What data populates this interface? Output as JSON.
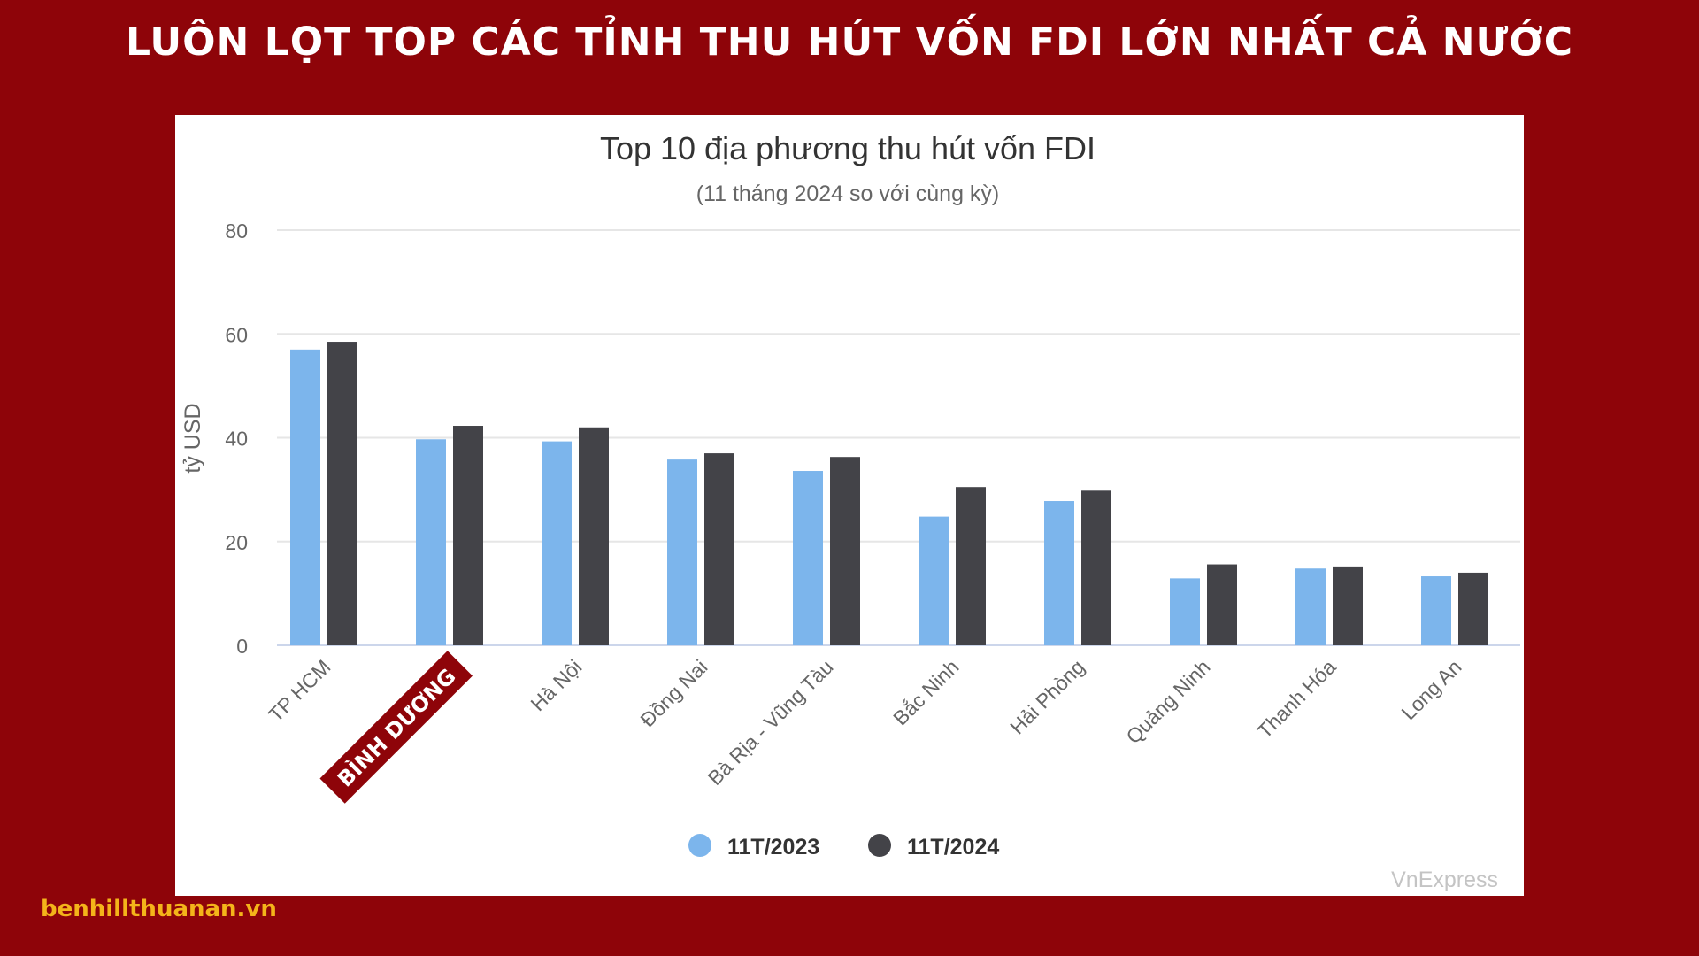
{
  "banner": {
    "title": "LUÔN LỌT TOP CÁC TỈNH THU HÚT VỐN FDI LỚN NHẤT CẢ NƯỚC"
  },
  "footer": {
    "site": "benhillthuanan.vn"
  },
  "source": {
    "label": "VnExpress"
  },
  "colors": {
    "background": "#8e0409",
    "series_2023": "#7cb5ec",
    "series_2024": "#434348",
    "highlight_bg": "#8e0409",
    "footer_text": "#f4b41a"
  },
  "chart_data": {
    "type": "bar",
    "title": "Top 10 địa phương thu hút vốn FDI",
    "subtitle": "(11 tháng 2024 so với cùng kỳ)",
    "xlabel": "",
    "ylabel": "tỷ USD",
    "ylim": [
      0,
      80
    ],
    "yticks": [
      "0",
      "20",
      "40",
      "60",
      "80"
    ],
    "grid": true,
    "legend_position": "bottom-center",
    "categories": [
      "TP HCM",
      "BÌNH DƯƠNG",
      "Hà Nội",
      "Đồng Nai",
      "Bà Rịa - Vũng Tàu",
      "Bắc Ninh",
      "Hải Phòng",
      "Quảng Ninh",
      "Thanh Hóa",
      "Long An"
    ],
    "highlighted_category": "BÌNH DƯƠNG",
    "series": [
      {
        "name": "11T/2023",
        "values": [
          57,
          39.7,
          39.3,
          35.8,
          33.6,
          24.8,
          27.8,
          12.9,
          14.8,
          13.3
        ]
      },
      {
        "name": "11T/2024",
        "values": [
          58.5,
          42.3,
          42,
          37,
          36.3,
          30.5,
          29.8,
          15.6,
          15.2,
          14
        ]
      }
    ]
  }
}
